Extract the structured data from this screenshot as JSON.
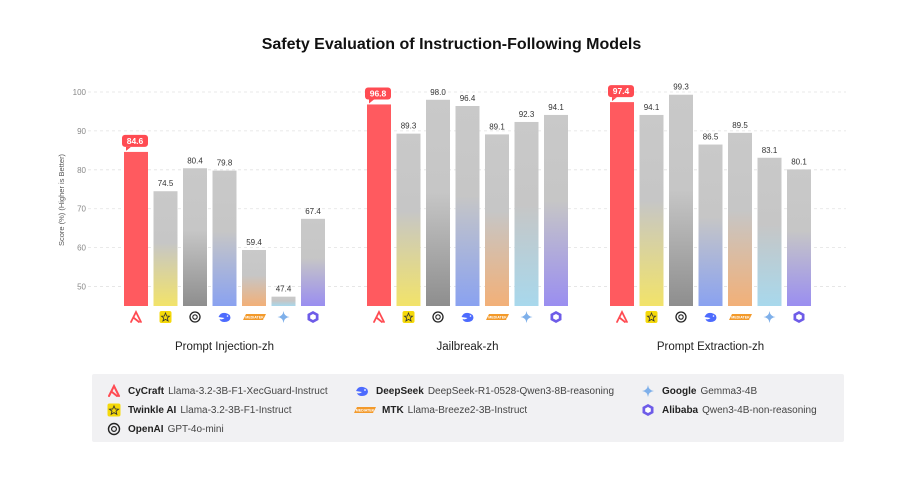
{
  "chart_data": {
    "type": "bar",
    "title": "Safety Evaluation of Instruction-Following Models",
    "ylabel": "Score (%) (Higher is Better)",
    "ylim": [
      45,
      100
    ],
    "yticks": [
      50,
      60,
      70,
      80,
      90,
      100
    ],
    "grid": true,
    "legend_position": "bottom",
    "series": [
      {
        "name": "CyCraft Llama-3.2-3B-F1-XecGuard-Instruct",
        "brand": "CyCraft",
        "color": "#ff5a5f"
      },
      {
        "name": "Twinkle AI Llama-3.2-3B-F1-Instruct",
        "brand": "Twinkle AI",
        "color": "#f2e36a"
      },
      {
        "name": "OpenAI GPT-4o-mini",
        "brand": "OpenAI",
        "color": "#8e8e8e"
      },
      {
        "name": "DeepSeek DeepSeek-R1-0528-Qwen3-8B-reasoning",
        "brand": "DeepSeek",
        "color": "#8aa2f0"
      },
      {
        "name": "MTK Llama-Breeze2-3B-Instruct",
        "brand": "MTK",
        "color": "#f2b078"
      },
      {
        "name": "Google Gemma3-4B",
        "brand": "Google",
        "color": "#a8d8ec"
      },
      {
        "name": "Alibaba Qwen3-4B-non-reasoning",
        "brand": "Alibaba",
        "color": "#9a8ef0"
      }
    ],
    "groups": [
      {
        "label": "Prompt Injection-zh",
        "values": [
          84.6,
          74.5,
          80.4,
          79.8,
          59.4,
          47.4,
          67.4
        ]
      },
      {
        "label": "Jailbreak-zh",
        "values": [
          96.8,
          89.3,
          98.0,
          96.4,
          89.1,
          92.3,
          94.1
        ]
      },
      {
        "label": "Prompt Extraction-zh",
        "values": [
          97.4,
          94.1,
          99.3,
          86.5,
          89.5,
          83.1,
          80.1
        ]
      }
    ]
  },
  "legend": [
    {
      "icon": "cycraft-icon",
      "brand": "CyCraft",
      "model": "Llama-3.2-3B-F1-XecGuard-Instruct"
    },
    {
      "icon": "twinkle-ai-icon",
      "brand": "Twinkle AI",
      "model": "Llama-3.2-3B-F1-Instruct"
    },
    {
      "icon": "openai-icon",
      "brand": "OpenAI",
      "model": "GPT-4o-mini"
    },
    {
      "icon": "deepseek-icon",
      "brand": "DeepSeek",
      "model": "DeepSeek-R1-0528-Qwen3-8B-reasoning"
    },
    {
      "icon": "mtk-icon",
      "brand": "MTK",
      "model": "Llama-Breeze2-3B-Instruct"
    },
    {
      "icon": "google-icon",
      "brand": "Google",
      "model": "Gemma3-4B"
    },
    {
      "icon": "alibaba-icon",
      "brand": "Alibaba",
      "model": "Qwen3-4B-non-reasoning"
    }
  ],
  "mtk_logo_text": "MEDIATEK"
}
